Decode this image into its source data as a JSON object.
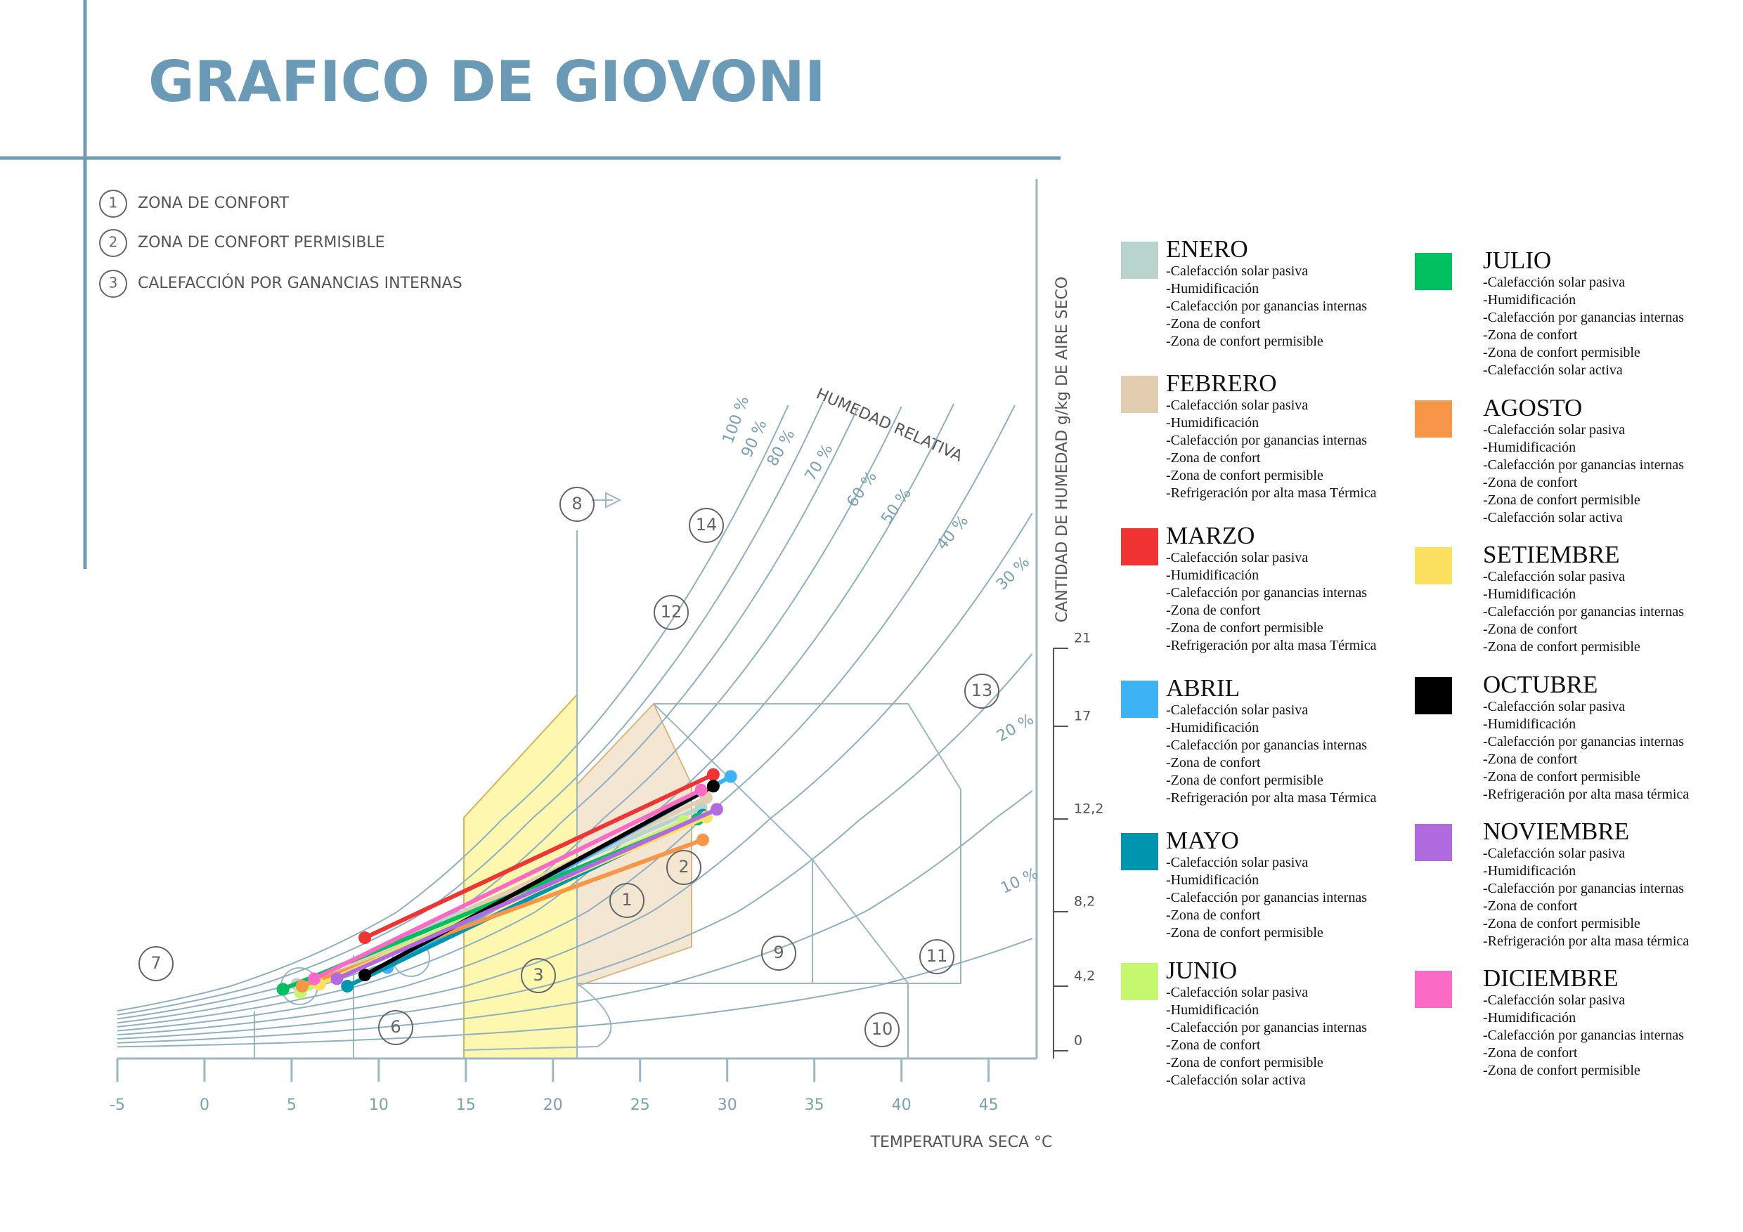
{
  "title": "GRAFICO DE GIOVONI",
  "zone_key": [
    {
      "number": "1",
      "text": "ZONA DE CONFORT"
    },
    {
      "number": "2",
      "text": "ZONA DE CONFORT PERMISIBLE"
    },
    {
      "number": "3",
      "text": "CALEFACCIÓN POR GANANCIAS INTERNAS"
    }
  ],
  "chart_data": {
    "type": "line",
    "x_label": "TEMPERATURA SECA °C",
    "y_label": "CANTIDAD DE HUMEDAD g/kg DE AIRE SECO",
    "rh_title": "HUMEDAD RELATIVA",
    "rh_labels": [
      "100 %",
      "90 %",
      "80 %",
      "70 %",
      "60 %",
      "50 %",
      "40 %",
      "30 %",
      "20 %",
      "10 %"
    ],
    "zone_labels": [
      "1",
      "2",
      "3",
      "6",
      "7",
      "8",
      "9",
      "10",
      "11",
      "12",
      "13",
      "14"
    ],
    "xlim": [
      -5,
      48
    ],
    "xticks": [
      -5,
      0,
      5,
      10,
      15,
      20,
      25,
      30,
      35,
      40,
      45
    ],
    "ylim": [
      0,
      21
    ],
    "yticks": [
      0,
      {
        "value": 4.2,
        "label": "4,2"
      },
      {
        "value": 8.2,
        "label": "8,2"
      },
      {
        "value": 12.2,
        "label": "12,2"
      },
      17,
      21
    ],
    "series": [
      {
        "name": "ENERO",
        "color": "#b8d4cd",
        "x": [
          5.3,
          28.5
        ],
        "values": [
          4.3,
          12.8
        ],
        "strategies": [
          "-Calefacción solar pasiva",
          "-Humidificación",
          "-Calefacción por ganancias internas",
          "-Zona de confort",
          "-Zona de confort permisible"
        ]
      },
      {
        "name": "FEBRERO",
        "color": "#e2cdb1",
        "x": [
          7.6,
          28.8
        ],
        "values": [
          4.9,
          13.3
        ],
        "strategies": [
          "-Calefacción solar pasiva",
          "-Humidificación",
          "-Calefacción por ganancias internas",
          "-Zona de confort",
          "-Zona de confort permisible",
          "-Refrigeración por alta masa Térmica"
        ]
      },
      {
        "name": "MARZO",
        "color": "#f03333",
        "x": [
          9.2,
          29.2
        ],
        "values": [
          6.8,
          14.5
        ],
        "strategies": [
          "-Calefacción solar pasiva",
          "-Humidificación",
          "-Calefacción por ganancias internas",
          "-Zona de confort",
          "-Zona de confort permisible",
          "-Refrigeración por alta masa Térmica"
        ]
      },
      {
        "name": "ABRIL",
        "color": "#3bb3f5",
        "x": [
          10.5,
          30.2
        ],
        "values": [
          5.2,
          14.4
        ],
        "strategies": [
          "-Calefacción solar pasiva",
          "-Humidificación",
          "-Calefacción por ganancias internas",
          "-Zona de confort",
          "-Zona de confort permisible",
          "-Refrigeración por alta masa Térmica"
        ]
      },
      {
        "name": "MAYO",
        "color": "#0096b0",
        "x": [
          8.2,
          28.6
        ],
        "values": [
          4.2,
          12.4
        ],
        "strategies": [
          "-Calefacción solar pasiva",
          "-Humidificación",
          "-Calefacción por ganancias internas",
          "-Zona de confort",
          "-Zona de confort permisible"
        ]
      },
      {
        "name": "JUNIO",
        "color": "#c5f76f",
        "x": [
          5.5,
          27.5
        ],
        "values": [
          3.8,
          12.1
        ],
        "strategies": [
          "-Calefacción solar pasiva",
          "-Humidificación",
          "-Calefacción por ganancias internas",
          "-Zona de confort",
          "-Zona de confort permisible",
          "-Calefacción solar activa"
        ]
      },
      {
        "name": "JULIO",
        "color": "#00c060",
        "x": [
          4.5,
          28.3
        ],
        "values": [
          4.0,
          12.2
        ],
        "strategies": [
          "-Calefacción solar pasiva",
          "-Humidificación",
          "-Calefacción por ganancias internas",
          "-Zona de confort",
          "-Zona de confort permisible",
          "-Calefacción solar activa"
        ]
      },
      {
        "name": "AGOSTO",
        "color": "#f79548",
        "x": [
          5.6,
          28.6
        ],
        "values": [
          4.2,
          11.3
        ],
        "strategies": [
          "-Calefacción solar pasiva",
          "-Humidificación",
          "-Calefacción por ganancias internas",
          "-Zona de confort",
          "-Zona de confort permisible",
          "-Calefacción solar activa"
        ]
      },
      {
        "name": "SETIEMBRE",
        "color": "#fce060",
        "x": [
          6.6,
          28.8
        ],
        "values": [
          4.3,
          12.3
        ],
        "strategies": [
          "-Calefacción solar pasiva",
          "-Humidificación",
          "-Calefacción por ganancias internas",
          "-Zona de confort",
          "-Zona de confort permisible"
        ]
      },
      {
        "name": "OCTUBRE",
        "color": "#000000",
        "x": [
          9.2,
          29.2
        ],
        "values": [
          4.8,
          13.9
        ],
        "strategies": [
          "-Calefacción solar pasiva",
          "-Humidificación",
          "-Calefacción por ganancias internas",
          "-Zona de confort",
          "-Zona de confort permisible",
          "-Refrigeración por alta masa térmica"
        ]
      },
      {
        "name": "NOVIEMBRE",
        "color": "#b06be0",
        "x": [
          7.6,
          29.4
        ],
        "values": [
          4.6,
          12.7
        ],
        "strategies": [
          "-Calefacción solar pasiva",
          "-Humidificación",
          "-Calefacción por ganancias internas",
          "-Zona de confort",
          "-Zona de confort permisible",
          "-Refrigeración por alta masa térmica"
        ]
      },
      {
        "name": "DICIEMBRE",
        "color": "#fb6ac4",
        "x": [
          6.3,
          28.5
        ],
        "values": [
          4.6,
          13.7
        ],
        "strategies": [
          "-Calefacción solar pasiva",
          "-Humidificación",
          "-Calefacción por ganancias internas",
          "-Zona de confort",
          "-Zona de confort permisible"
        ]
      }
    ]
  }
}
